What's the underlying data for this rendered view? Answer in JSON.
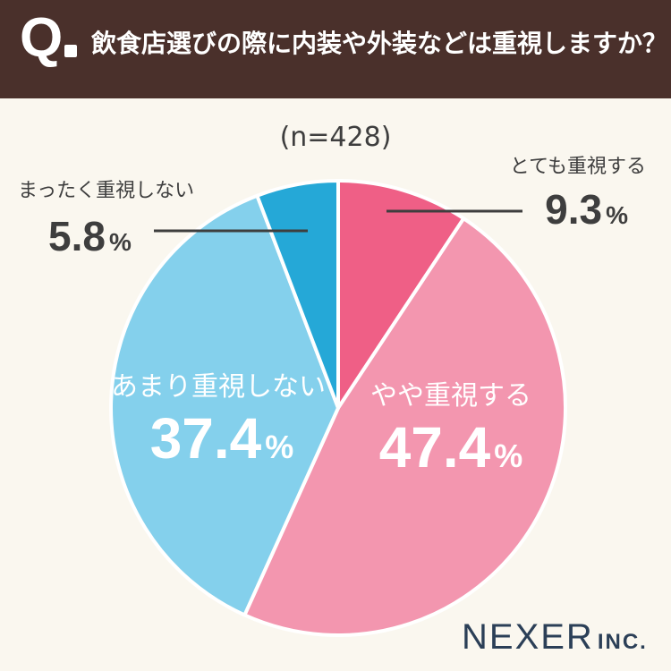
{
  "header": {
    "q_mark": "Q",
    "question": "飲食店選びの際に内装や外装などは重視しますか？"
  },
  "sample_label": "(n=428)",
  "brand": {
    "name": "NEXER",
    "suffix": "INC."
  },
  "colors": {
    "header_bg": "#4a302b",
    "background": "#faf7ef",
    "totemo": "#ef5f86",
    "yaya": "#f396af",
    "amari": "#84d0ec",
    "mattaku": "#25a8d7",
    "leader_line": "#3e3e3e",
    "brand": "#2b3f57"
  },
  "chart_data": {
    "type": "pie",
    "title": "飲食店選びの際に内装や外装などは重視しますか？",
    "n_label": "(n=428)",
    "unit": "%",
    "slices": [
      {
        "label": "とても重視する",
        "value": 9.3,
        "value_text": "9.3"
      },
      {
        "label": "やや重視する",
        "value": 47.4,
        "value_text": "47.4"
      },
      {
        "label": "あまり重視しない",
        "value": 37.4,
        "value_text": "37.4"
      },
      {
        "label": "まったく重視しない",
        "value": 5.8,
        "value_text": "5.8"
      }
    ]
  }
}
